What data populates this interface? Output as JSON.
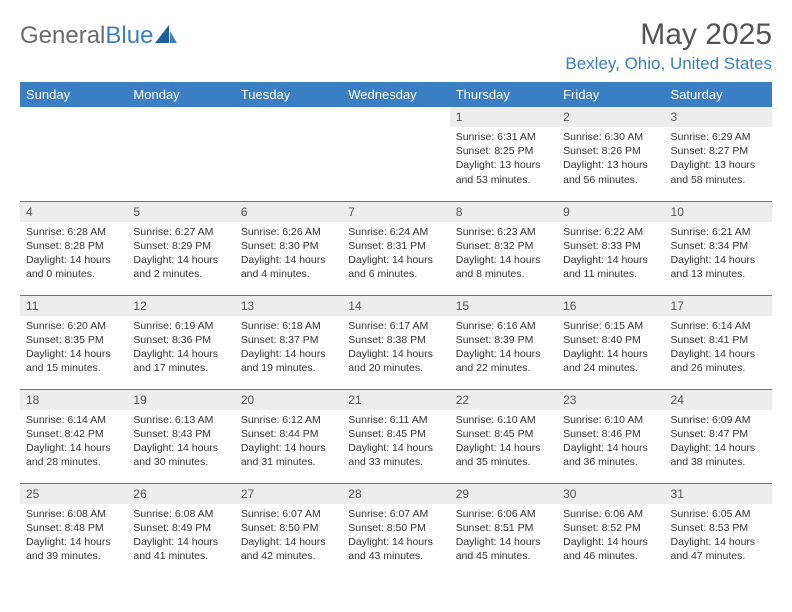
{
  "brand": {
    "part1": "General",
    "part2": "Blue"
  },
  "title": "May 2025",
  "location": "Bexley, Ohio, United States",
  "colors": {
    "accent": "#3a7fc4",
    "header_text": "#555555",
    "dayhdr_bg": "#ededed",
    "body_text": "#333333"
  },
  "day_headers": [
    "Sunday",
    "Monday",
    "Tuesday",
    "Wednesday",
    "Thursday",
    "Friday",
    "Saturday"
  ],
  "lead_blanks": 4,
  "days": [
    {
      "n": 1,
      "sr": "6:31 AM",
      "ss": "8:25 PM",
      "dl": "13 hours and 53 minutes."
    },
    {
      "n": 2,
      "sr": "6:30 AM",
      "ss": "8:26 PM",
      "dl": "13 hours and 56 minutes."
    },
    {
      "n": 3,
      "sr": "6:29 AM",
      "ss": "8:27 PM",
      "dl": "13 hours and 58 minutes."
    },
    {
      "n": 4,
      "sr": "6:28 AM",
      "ss": "8:28 PM",
      "dl": "14 hours and 0 minutes."
    },
    {
      "n": 5,
      "sr": "6:27 AM",
      "ss": "8:29 PM",
      "dl": "14 hours and 2 minutes."
    },
    {
      "n": 6,
      "sr": "6:26 AM",
      "ss": "8:30 PM",
      "dl": "14 hours and 4 minutes."
    },
    {
      "n": 7,
      "sr": "6:24 AM",
      "ss": "8:31 PM",
      "dl": "14 hours and 6 minutes."
    },
    {
      "n": 8,
      "sr": "6:23 AM",
      "ss": "8:32 PM",
      "dl": "14 hours and 8 minutes."
    },
    {
      "n": 9,
      "sr": "6:22 AM",
      "ss": "8:33 PM",
      "dl": "14 hours and 11 minutes."
    },
    {
      "n": 10,
      "sr": "6:21 AM",
      "ss": "8:34 PM",
      "dl": "14 hours and 13 minutes."
    },
    {
      "n": 11,
      "sr": "6:20 AM",
      "ss": "8:35 PM",
      "dl": "14 hours and 15 minutes."
    },
    {
      "n": 12,
      "sr": "6:19 AM",
      "ss": "8:36 PM",
      "dl": "14 hours and 17 minutes."
    },
    {
      "n": 13,
      "sr": "6:18 AM",
      "ss": "8:37 PM",
      "dl": "14 hours and 19 minutes."
    },
    {
      "n": 14,
      "sr": "6:17 AM",
      "ss": "8:38 PM",
      "dl": "14 hours and 20 minutes."
    },
    {
      "n": 15,
      "sr": "6:16 AM",
      "ss": "8:39 PM",
      "dl": "14 hours and 22 minutes."
    },
    {
      "n": 16,
      "sr": "6:15 AM",
      "ss": "8:40 PM",
      "dl": "14 hours and 24 minutes."
    },
    {
      "n": 17,
      "sr": "6:14 AM",
      "ss": "8:41 PM",
      "dl": "14 hours and 26 minutes."
    },
    {
      "n": 18,
      "sr": "6:14 AM",
      "ss": "8:42 PM",
      "dl": "14 hours and 28 minutes."
    },
    {
      "n": 19,
      "sr": "6:13 AM",
      "ss": "8:43 PM",
      "dl": "14 hours and 30 minutes."
    },
    {
      "n": 20,
      "sr": "6:12 AM",
      "ss": "8:44 PM",
      "dl": "14 hours and 31 minutes."
    },
    {
      "n": 21,
      "sr": "6:11 AM",
      "ss": "8:45 PM",
      "dl": "14 hours and 33 minutes."
    },
    {
      "n": 22,
      "sr": "6:10 AM",
      "ss": "8:45 PM",
      "dl": "14 hours and 35 minutes."
    },
    {
      "n": 23,
      "sr": "6:10 AM",
      "ss": "8:46 PM",
      "dl": "14 hours and 36 minutes."
    },
    {
      "n": 24,
      "sr": "6:09 AM",
      "ss": "8:47 PM",
      "dl": "14 hours and 38 minutes."
    },
    {
      "n": 25,
      "sr": "6:08 AM",
      "ss": "8:48 PM",
      "dl": "14 hours and 39 minutes."
    },
    {
      "n": 26,
      "sr": "6:08 AM",
      "ss": "8:49 PM",
      "dl": "14 hours and 41 minutes."
    },
    {
      "n": 27,
      "sr": "6:07 AM",
      "ss": "8:50 PM",
      "dl": "14 hours and 42 minutes."
    },
    {
      "n": 28,
      "sr": "6:07 AM",
      "ss": "8:50 PM",
      "dl": "14 hours and 43 minutes."
    },
    {
      "n": 29,
      "sr": "6:06 AM",
      "ss": "8:51 PM",
      "dl": "14 hours and 45 minutes."
    },
    {
      "n": 30,
      "sr": "6:06 AM",
      "ss": "8:52 PM",
      "dl": "14 hours and 46 minutes."
    },
    {
      "n": 31,
      "sr": "6:05 AM",
      "ss": "8:53 PM",
      "dl": "14 hours and 47 minutes."
    }
  ],
  "labels": {
    "sunrise": "Sunrise:",
    "sunset": "Sunset:",
    "daylight": "Daylight:"
  }
}
